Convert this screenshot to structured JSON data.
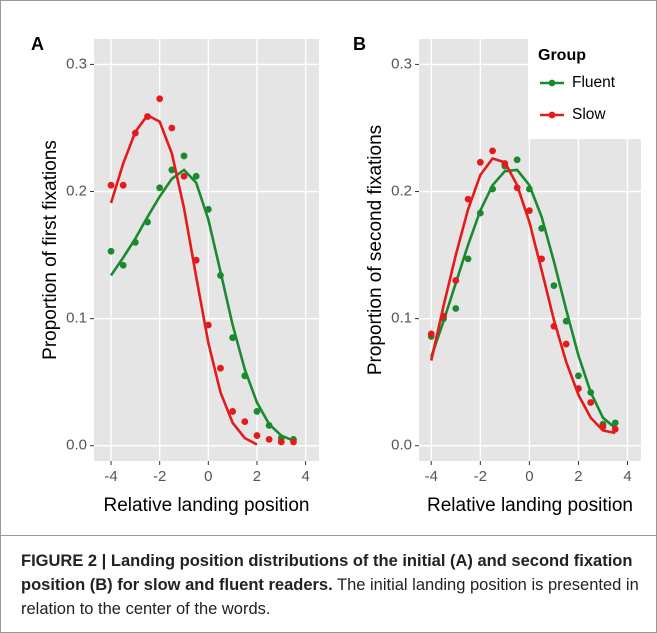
{
  "chart_data": [
    {
      "type": "scatter",
      "label": "A",
      "ylabel": "Proportion of first fixations",
      "xlabel": "Relative landing position",
      "x": [
        -4,
        -3.5,
        -3,
        -2.5,
        -2,
        -1.5,
        -1,
        -0.5,
        0,
        0.5,
        1,
        1.5,
        2,
        2.5,
        3,
        3.5
      ],
      "series": [
        {
          "name": "Fluent",
          "color": "#1a8a2e",
          "values": [
            0.153,
            0.142,
            0.16,
            0.176,
            0.203,
            0.217,
            0.228,
            0.212,
            0.186,
            0.134,
            0.085,
            0.055,
            0.027,
            0.016,
            0.006,
            0.005
          ],
          "fit_values": [
            0.134,
            0.148,
            0.163,
            0.18,
            0.196,
            0.21,
            0.217,
            0.207,
            0.178,
            0.137,
            0.095,
            0.06,
            0.034,
            0.017,
            0.008,
            0.004
          ]
        },
        {
          "name": "Slow",
          "color": "#e41a1c",
          "values": [
            0.205,
            0.205,
            0.246,
            0.259,
            0.273,
            0.25,
            0.212,
            0.146,
            0.095,
            0.061,
            0.027,
            0.019,
            0.008,
            0.005,
            0.003,
            0.003
          ],
          "fit_values": [
            0.191,
            0.222,
            0.247,
            0.26,
            0.255,
            0.23,
            0.187,
            0.133,
            0.081,
            0.042,
            0.018,
            0.006,
            0.001,
            null,
            null,
            null
          ]
        }
      ],
      "xlim": [
        -4.7,
        4.55
      ],
      "xticks": [
        -4,
        -2,
        0,
        2,
        4
      ],
      "ylim": [
        -0.012,
        0.32
      ],
      "yticks": [
        {
          "value": 0,
          "label": "0.0"
        },
        0.1,
        0.2,
        0.3
      ],
      "grid": true
    },
    {
      "type": "scatter",
      "label": "B",
      "ylabel": "Proportion of second fixations",
      "xlabel": "Relative landing position",
      "legend": "top-right",
      "legend_title": "Group",
      "x": [
        -4,
        -3.5,
        -3,
        -2.5,
        -2,
        -1.5,
        -1,
        -0.5,
        0,
        0.5,
        1,
        1.5,
        2,
        2.5,
        3,
        3.5
      ],
      "series": [
        {
          "name": "Fluent",
          "color": "#1a8a2e",
          "values": [
            0.086,
            0.1,
            0.108,
            0.147,
            0.183,
            0.202,
            0.22,
            0.225,
            0.202,
            0.171,
            0.126,
            0.098,
            0.055,
            0.042,
            0.017,
            0.018
          ],
          "fit_values": [
            0.07,
            0.098,
            0.128,
            0.158,
            0.185,
            0.205,
            0.216,
            0.217,
            0.205,
            0.18,
            0.145,
            0.107,
            0.071,
            0.042,
            0.022,
            0.014
          ]
        },
        {
          "name": "Slow",
          "color": "#e41a1c",
          "values": [
            0.088,
            0.102,
            0.13,
            0.194,
            0.223,
            0.232,
            0.222,
            0.203,
            0.185,
            0.147,
            0.094,
            0.08,
            0.045,
            0.034,
            0.015,
            0.013
          ],
          "fit_values": [
            0.067,
            0.11,
            0.15,
            0.186,
            0.213,
            0.226,
            0.223,
            0.205,
            0.176,
            0.138,
            0.099,
            0.066,
            0.04,
            0.022,
            0.012,
            0.01
          ]
        }
      ],
      "xlim": [
        -4.5,
        4.55
      ],
      "xticks": [
        -4,
        -2,
        0,
        2,
        4
      ],
      "ylim": [
        -0.012,
        0.32
      ],
      "yticks": [
        {
          "value": 0,
          "label": "0.0"
        },
        0.1,
        0.2,
        0.3
      ],
      "grid": true
    }
  ],
  "caption": {
    "bold": "FIGURE 2 | Landing position distributions of the initial (A) and second fixation position (B) for slow and fluent readers.",
    "text": "The initial landing position is presented in relation to the center of the words."
  }
}
